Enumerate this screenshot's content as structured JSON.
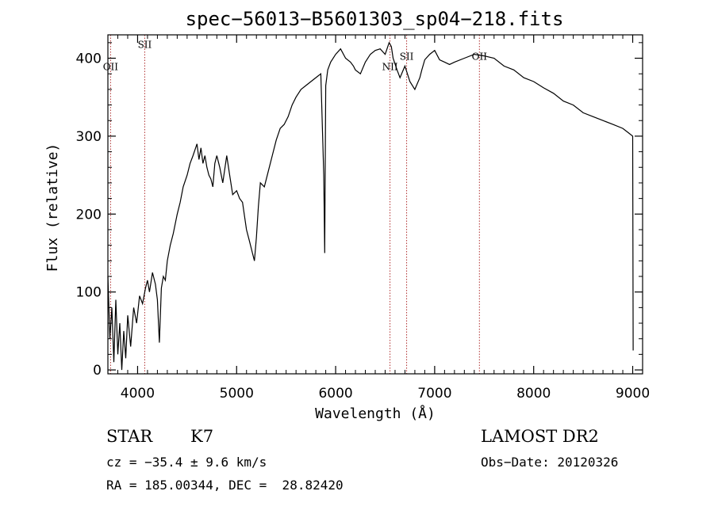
{
  "chart_data": {
    "type": "line",
    "title": "spec−56013−B5601303_sp04−218.fits",
    "xlabel": "Wavelength (Å)",
    "ylabel": "Flux (relative)",
    "xlim": [
      3700,
      9100
    ],
    "ylim": [
      -5,
      430
    ],
    "xticks": [
      4000,
      5000,
      6000,
      7000,
      8000,
      9000
    ],
    "yticks": [
      0,
      100,
      200,
      300,
      400
    ],
    "grid": false,
    "line_color": "#000000",
    "marker_color": "#b03030",
    "lines": [
      {
        "label": "OII",
        "x": 3727,
        "label_y": 385
      },
      {
        "label": "SII",
        "x": 4072,
        "label_y": 413
      },
      {
        "label": "NII",
        "x": 6549,
        "label_y": 385
      },
      {
        "label": "SII",
        "x": 6717,
        "label_y": 398
      },
      {
        "label": "OII",
        "x": 7452,
        "label_y": 398
      }
    ],
    "series": [
      {
        "x": [
          3700,
          3720,
          3740,
          3760,
          3780,
          3800,
          3820,
          3840,
          3860,
          3880,
          3900,
          3930,
          3960,
          3990,
          4020,
          4050,
          4080,
          4100,
          4120,
          4150,
          4180,
          4200,
          4220,
          4240,
          4260,
          4280,
          4300,
          4330,
          4360,
          4400,
          4430,
          4460,
          4500,
          4530,
          4560,
          4600,
          4620,
          4640,
          4660,
          4680,
          4700,
          4720,
          4740,
          4760,
          4780,
          4800,
          4830,
          4860,
          4900,
          4930,
          4960,
          5000,
          5030,
          5060,
          5100,
          5130,
          5160,
          5180,
          5200,
          5220,
          5240,
          5280,
          5320,
          5360,
          5400,
          5440,
          5480,
          5520,
          5560,
          5600,
          5650,
          5700,
          5750,
          5800,
          5850,
          5880,
          5890,
          5895,
          5900,
          5920,
          5950,
          6000,
          6050,
          6100,
          6150,
          6180,
          6200,
          6250,
          6300,
          6350,
          6400,
          6450,
          6500,
          6540,
          6563,
          6580,
          6620,
          6650,
          6700,
          6750,
          6800,
          6850,
          6870,
          6900,
          6950,
          7000,
          7050,
          7100,
          7150,
          7200,
          7300,
          7400,
          7500,
          7600,
          7700,
          7800,
          7900,
          8000,
          8100,
          8200,
          8300,
          8400,
          8500,
          8600,
          8700,
          8800,
          8900,
          8950,
          9000,
          9005
        ],
        "y": [
          120,
          40,
          80,
          10,
          90,
          20,
          60,
          0,
          50,
          15,
          70,
          30,
          80,
          60,
          95,
          85,
          105,
          115,
          100,
          125,
          110,
          90,
          35,
          105,
          120,
          115,
          140,
          160,
          175,
          200,
          215,
          235,
          250,
          265,
          275,
          290,
          270,
          285,
          265,
          275,
          260,
          250,
          245,
          235,
          265,
          275,
          260,
          240,
          275,
          250,
          225,
          230,
          220,
          215,
          180,
          165,
          150,
          140,
          170,
          210,
          240,
          235,
          255,
          275,
          295,
          310,
          315,
          325,
          340,
          350,
          360,
          365,
          370,
          375,
          380,
          250,
          150,
          270,
          365,
          385,
          395,
          405,
          412,
          400,
          395,
          390,
          385,
          380,
          395,
          405,
          410,
          412,
          405,
          420,
          415,
          400,
          385,
          375,
          390,
          370,
          360,
          375,
          385,
          398,
          405,
          410,
          398,
          395,
          392,
          395,
          400,
          405,
          403,
          400,
          390,
          385,
          375,
          370,
          362,
          355,
          345,
          340,
          330,
          325,
          320,
          315,
          310,
          305,
          300,
          25
        ]
      }
    ]
  },
  "info": {
    "object_class": "STAR",
    "subclass": "K7",
    "survey": "LAMOST DR2",
    "cz": "cz = −35.4 ± 9.6 km/s",
    "obs_date": "Obs−Date: 20120326",
    "coords": "RA = 185.00344, DEC =  28.82420"
  }
}
